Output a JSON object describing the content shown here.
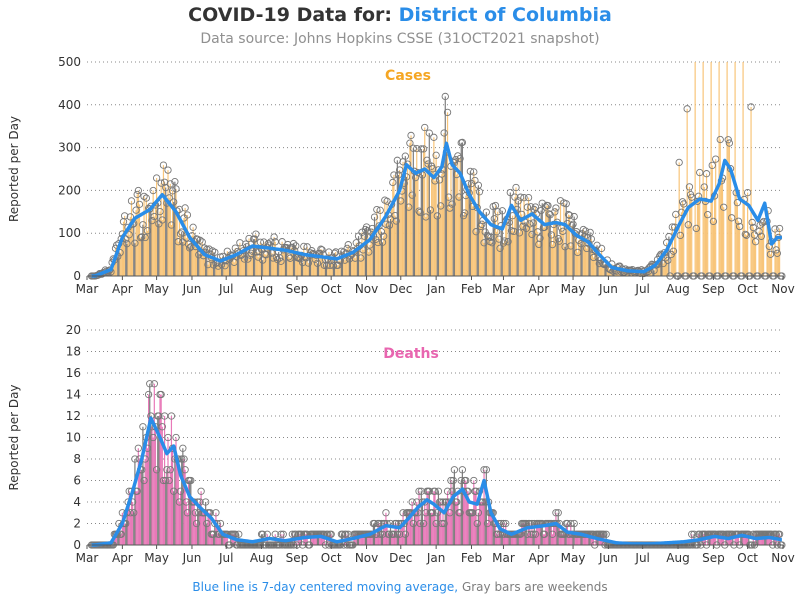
{
  "header": {
    "title_prefix": "COVID-19 Data for: ",
    "title_location": "District of Columbia",
    "subtitle": "Data source: Johns Hopkins CSSE (31OCT2021 snapshot)"
  },
  "footer": {
    "blue_text": "Blue line is 7-day centered moving average,",
    "gray_text": "Gray bars are weekends"
  },
  "colors": {
    "title_location": "#2a8de8",
    "moving_average": "#2a8de8",
    "cases_bars": "#f8c57a",
    "deaths_bars": "#e879b8",
    "weekend_bars": "#7d7d7d",
    "cases_label": "#f5a623",
    "deaths_label": "#e866b0",
    "footer_gray": "#7d7d7d",
    "gridline": "#888888"
  },
  "chart_data": [
    {
      "type": "bar",
      "panel": "cases",
      "label": "Cases",
      "ylabel": "Reported per Day",
      "ylim": [
        0,
        500
      ],
      "yticks": [
        0,
        100,
        200,
        300,
        400,
        500
      ],
      "x_ticks": [
        "Mar",
        "Apr",
        "May",
        "Jun",
        "Jul",
        "Aug",
        "Sep",
        "Oct",
        "Nov",
        "Dec",
        "Jan",
        "Feb",
        "Mar",
        "Apr",
        "May",
        "Jun",
        "Jul",
        "Aug",
        "Sep",
        "Oct",
        "Nov"
      ],
      "grid": "horizontal dotted",
      "overlay": "7-day centered moving average",
      "x_start": "2020-03-01",
      "x_end": "2021-11-01",
      "points": [
        [
          "2020-03-08",
          0
        ],
        [
          "2020-03-22",
          15
        ],
        [
          "2020-04-01",
          90
        ],
        [
          "2020-04-12",
          135
        ],
        [
          "2020-04-25",
          155
        ],
        [
          "2020-05-06",
          190
        ],
        [
          "2020-05-18",
          150
        ],
        [
          "2020-05-30",
          90
        ],
        [
          "2020-06-12",
          50
        ],
        [
          "2020-06-26",
          35
        ],
        [
          "2020-07-10",
          50
        ],
        [
          "2020-07-24",
          70
        ],
        [
          "2020-08-08",
          65
        ],
        [
          "2020-08-22",
          60
        ],
        [
          "2020-09-08",
          50
        ],
        [
          "2020-09-22",
          45
        ],
        [
          "2020-10-06",
          40
        ],
        [
          "2020-10-20",
          55
        ],
        [
          "2020-11-04",
          85
        ],
        [
          "2020-11-18",
          140
        ],
        [
          "2020-11-30",
          200
        ],
        [
          "2020-12-06",
          260
        ],
        [
          "2020-12-14",
          240
        ],
        [
          "2020-12-22",
          250
        ],
        [
          "2020-12-30",
          230
        ],
        [
          "2021-01-06",
          255
        ],
        [
          "2021-01-10",
          310
        ],
        [
          "2021-01-15",
          260
        ],
        [
          "2021-01-22",
          240
        ],
        [
          "2021-01-30",
          190
        ],
        [
          "2021-02-08",
          150
        ],
        [
          "2021-02-18",
          120
        ],
        [
          "2021-02-28",
          110
        ],
        [
          "2021-03-08",
          165
        ],
        [
          "2021-03-16",
          130
        ],
        [
          "2021-03-26",
          145
        ],
        [
          "2021-04-06",
          120
        ],
        [
          "2021-04-16",
          125
        ],
        [
          "2021-04-24",
          120
        ],
        [
          "2021-05-04",
          95
        ],
        [
          "2021-05-14",
          80
        ],
        [
          "2021-05-24",
          50
        ],
        [
          "2021-06-04",
          20
        ],
        [
          "2021-06-18",
          12
        ],
        [
          "2021-07-02",
          10
        ],
        [
          "2021-07-12",
          25
        ],
        [
          "2021-07-22",
          60
        ],
        [
          "2021-08-02",
          120
        ],
        [
          "2021-08-10",
          160
        ],
        [
          "2021-08-20",
          180
        ],
        [
          "2021-08-30",
          175
        ],
        [
          "2021-09-06",
          215
        ],
        [
          "2021-09-11",
          270
        ],
        [
          "2021-09-16",
          250
        ],
        [
          "2021-09-24",
          180
        ],
        [
          "2021-10-02",
          165
        ],
        [
          "2021-10-10",
          130
        ],
        [
          "2021-10-16",
          170
        ],
        [
          "2021-10-22",
          75
        ],
        [
          "2021-10-27",
          90
        ]
      ]
    },
    {
      "type": "bar",
      "panel": "deaths",
      "label": "Deaths",
      "ylabel": "Reported per Day",
      "ylim": [
        0,
        20
      ],
      "yticks": [
        0,
        2,
        4,
        6,
        8,
        10,
        12,
        14,
        16,
        18,
        20
      ],
      "x_ticks": [
        "Mar",
        "Apr",
        "May",
        "Jun",
        "Jul",
        "Aug",
        "Sep",
        "Oct",
        "Nov",
        "Dec",
        "Jan",
        "Feb",
        "Mar",
        "Apr",
        "May",
        "Jun",
        "Jul",
        "Aug",
        "Sep",
        "Oct",
        "Nov"
      ],
      "grid": "horizontal dotted",
      "overlay": "7-day centered moving average",
      "x_start": "2020-03-01",
      "x_end": "2021-11-01",
      "points": [
        [
          "2020-03-08",
          0
        ],
        [
          "2020-03-22",
          0.2
        ],
        [
          "2020-04-01",
          2
        ],
        [
          "2020-04-10",
          5
        ],
        [
          "2020-04-18",
          8
        ],
        [
          "2020-04-26",
          11.8
        ],
        [
          "2020-05-04",
          10
        ],
        [
          "2020-05-10",
          8.5
        ],
        [
          "2020-05-16",
          9.2
        ],
        [
          "2020-05-22",
          6.5
        ],
        [
          "2020-05-30",
          4.5
        ],
        [
          "2020-06-08",
          3.5
        ],
        [
          "2020-06-18",
          2.5
        ],
        [
          "2020-06-28",
          1
        ],
        [
          "2020-07-10",
          0.5
        ],
        [
          "2020-07-24",
          0.3
        ],
        [
          "2020-08-08",
          0.6
        ],
        [
          "2020-08-22",
          0.4
        ],
        [
          "2020-09-08",
          0.7
        ],
        [
          "2020-09-22",
          0.8
        ],
        [
          "2020-10-06",
          0.3
        ],
        [
          "2020-10-20",
          0.6
        ],
        [
          "2020-11-04",
          1
        ],
        [
          "2020-11-18",
          1.8
        ],
        [
          "2020-11-30",
          1.6
        ],
        [
          "2020-12-08",
          2.5
        ],
        [
          "2020-12-16",
          3.5
        ],
        [
          "2020-12-24",
          4.2
        ],
        [
          "2020-12-30",
          3.8
        ],
        [
          "2021-01-08",
          3
        ],
        [
          "2021-01-16",
          4.5
        ],
        [
          "2021-01-24",
          5.2
        ],
        [
          "2021-01-30",
          4
        ],
        [
          "2021-02-06",
          3.8
        ],
        [
          "2021-02-12",
          6
        ],
        [
          "2021-02-18",
          3
        ],
        [
          "2021-02-26",
          1.5
        ],
        [
          "2021-03-08",
          1
        ],
        [
          "2021-03-22",
          1.6
        ],
        [
          "2021-04-06",
          1.8
        ],
        [
          "2021-04-16",
          2
        ],
        [
          "2021-04-26",
          1.2
        ],
        [
          "2021-05-08",
          1
        ],
        [
          "2021-05-22",
          0.6
        ],
        [
          "2021-06-08",
          0.2
        ],
        [
          "2021-06-22",
          0.1
        ],
        [
          "2021-07-08",
          0.1
        ],
        [
          "2021-07-22",
          0.2
        ],
        [
          "2021-08-06",
          0.3
        ],
        [
          "2021-08-20",
          0.5
        ],
        [
          "2021-09-02",
          0.8
        ],
        [
          "2021-09-14",
          0.6
        ],
        [
          "2021-09-26",
          0.9
        ],
        [
          "2021-10-08",
          0.6
        ],
        [
          "2021-10-20",
          0.7
        ],
        [
          "2021-10-30",
          0.5
        ]
      ]
    }
  ]
}
